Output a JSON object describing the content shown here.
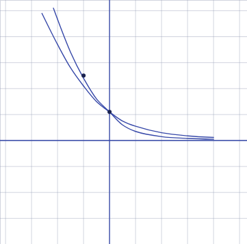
{
  "chart_data": {
    "type": "line",
    "xlim": [
      -4.2,
      5.3
    ],
    "ylim": [
      -4.0,
      5.4
    ],
    "xticks": [
      -4,
      -3,
      -2,
      -1,
      0,
      1,
      2,
      3,
      4,
      5
    ],
    "yticks": [
      -3,
      -2,
      -1,
      0,
      1,
      2,
      3,
      4,
      5
    ],
    "grid": true,
    "tick_labels": false,
    "color": "#3547a8",
    "series": [
      {
        "color": "#3547a8",
        "x": [
          -2.6,
          -2,
          -1.5,
          -1,
          -0.5,
          0,
          0.5,
          1,
          2,
          3,
          4
        ],
        "values": [
          4.9,
          3.7,
          2.8,
          2.1,
          1.5,
          1.1,
          0.75,
          0.55,
          0.3,
          0.18,
          0.12
        ]
      },
      {
        "color": "#3547a8",
        "x": [
          -2.16,
          -1.5,
          -1,
          -0.5,
          0,
          0.5,
          1,
          2,
          3,
          4
        ],
        "values": [
          5.1,
          3.4,
          2.4,
          1.6,
          1.1,
          0.6,
          0.35,
          0.15,
          0.08,
          0.05
        ]
      }
    ],
    "points": {
      "x": [
        0,
        -1
      ],
      "y": [
        1.1,
        2.5
      ],
      "marker": "circle"
    }
  }
}
